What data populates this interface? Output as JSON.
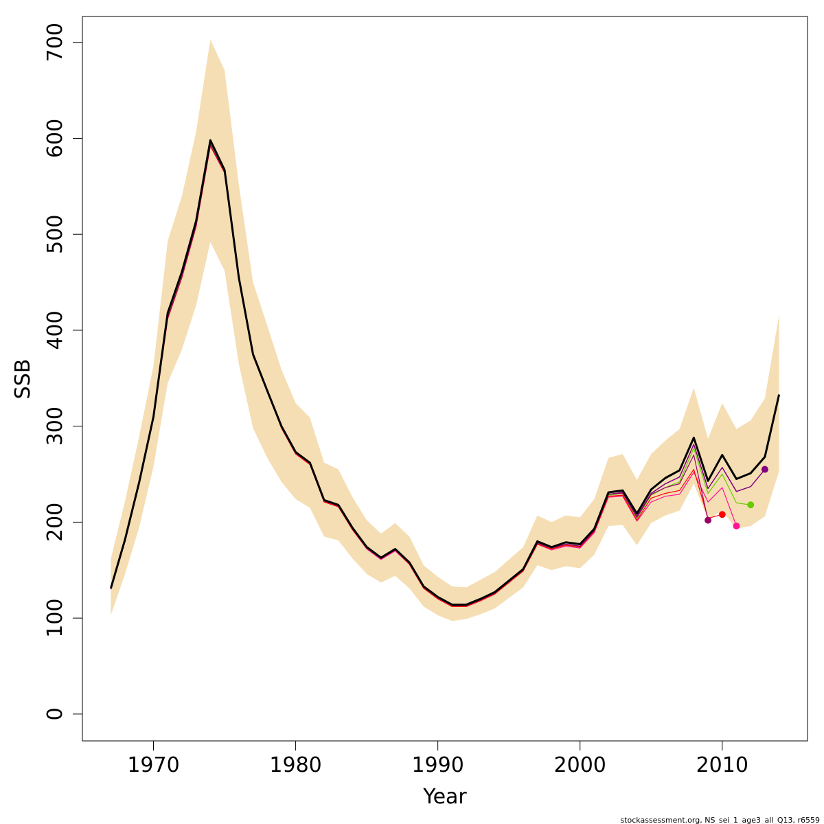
{
  "chart_data": {
    "type": "line",
    "title": "",
    "xlabel": "Year",
    "ylabel": "SSB",
    "xlim": [
      1965,
      2016
    ],
    "ylim": [
      -28,
      727
    ],
    "xticks": [
      1970,
      1980,
      1990,
      2000,
      2010
    ],
    "yticks": [
      0,
      100,
      200,
      300,
      400,
      500,
      600,
      700
    ],
    "grid": false,
    "legend": "none",
    "colors": {
      "band": "#f5deb3",
      "main": "#000000"
    },
    "band": {
      "x": [
        1967,
        1968,
        1969,
        1970,
        1971,
        1972,
        1973,
        1974,
        1975,
        1976,
        1977,
        1978,
        1979,
        1980,
        1981,
        1982,
        1983,
        1984,
        1985,
        1986,
        1987,
        1988,
        1989,
        1990,
        1991,
        1992,
        1993,
        1994,
        1995,
        1996,
        1997,
        1998,
        1999,
        2000,
        2001,
        2002,
        2003,
        2004,
        2005,
        2006,
        2007,
        2008,
        2009,
        2010,
        2011,
        2012,
        2013,
        2014
      ],
      "lower": [
        103,
        146,
        195,
        258,
        345,
        380,
        426,
        492,
        462,
        365,
        298,
        267,
        242,
        224,
        215,
        185,
        181,
        162,
        146,
        137,
        144,
        131,
        112,
        103,
        97,
        99,
        104,
        110,
        121,
        132,
        155,
        150,
        154,
        152,
        166,
        196,
        197,
        176,
        199,
        207,
        212,
        240,
        203,
        212,
        193,
        196,
        206,
        253
      ],
      "upper": [
        162,
        222,
        290,
        363,
        493,
        540,
        607,
        703,
        671,
        552,
        450,
        405,
        359,
        324,
        309,
        262,
        255,
        226,
        202,
        188,
        199,
        185,
        155,
        143,
        133,
        132,
        140,
        148,
        161,
        174,
        207,
        200,
        207,
        205,
        224,
        267,
        271,
        244,
        271,
        285,
        297,
        340,
        287,
        324,
        297,
        306,
        329,
        416
      ]
    },
    "series": [
      {
        "color": "#000000",
        "width": 3,
        "x": [
          1967,
          1968,
          1969,
          1970,
          1971,
          1972,
          1973,
          1974,
          1975,
          1976,
          1977,
          1978,
          1979,
          1980,
          1981,
          1982,
          1983,
          1984,
          1985,
          1986,
          1987,
          1988,
          1989,
          1990,
          1991,
          1992,
          1993,
          1994,
          1995,
          1996,
          1997,
          1998,
          1999,
          2000,
          2001,
          2002,
          2003,
          2004,
          2005,
          2006,
          2007,
          2008,
          2009,
          2010,
          2011,
          2012,
          2013,
          2014
        ],
        "values": [
          131,
          182,
          242,
          310,
          418,
          461,
          514,
          598,
          567,
          455,
          375,
          337,
          300,
          273,
          262,
          223,
          218,
          194,
          174,
          163,
          172,
          158,
          133,
          122,
          114,
          114,
          120,
          127,
          139,
          151,
          180,
          174,
          179,
          177,
          193,
          231,
          233,
          209,
          234,
          246,
          254,
          288,
          243,
          270,
          245,
          251,
          268,
          333
        ]
      },
      {
        "color": "#800080",
        "width": 1.5,
        "x": [
          1967,
          1968,
          1969,
          1970,
          1971,
          1972,
          1973,
          1974,
          1975,
          1976,
          1977,
          1978,
          1979,
          1980,
          1981,
          1982,
          1983,
          1984,
          1985,
          1986,
          1987,
          1988,
          1989,
          1990,
          1991,
          1992,
          1993,
          1994,
          1995,
          1996,
          1997,
          1998,
          1999,
          2000,
          2001,
          2002,
          2003,
          2004,
          2005,
          2006,
          2007,
          2008,
          2009,
          2010,
          2011,
          2012,
          2013
        ],
        "values": [
          131,
          181,
          241,
          309,
          415,
          458,
          511,
          595,
          565,
          454,
          374,
          337,
          299,
          272,
          261,
          222,
          217,
          193,
          173,
          162,
          171,
          157,
          132,
          121,
          113,
          113,
          119,
          126,
          138,
          150,
          179,
          173,
          177,
          175,
          191,
          229,
          231,
          206,
          230,
          240,
          247,
          281,
          235,
          257,
          232,
          237,
          255
        ],
        "end_point": [
          2013,
          255
        ]
      },
      {
        "color": "#66cc00",
        "width": 1.2,
        "x": [
          1967,
          1968,
          1969,
          1970,
          1971,
          1972,
          1973,
          1974,
          1975,
          1976,
          1977,
          1978,
          1979,
          1980,
          1981,
          1982,
          1983,
          1984,
          1985,
          1986,
          1987,
          1988,
          1989,
          1990,
          1991,
          1992,
          1993,
          1994,
          1995,
          1996,
          1997,
          1998,
          1999,
          2000,
          2001,
          2002,
          2003,
          2004,
          2005,
          2006,
          2007,
          2008,
          2009,
          2010,
          2011,
          2012
        ],
        "values": [
          131,
          181,
          241,
          309,
          414,
          457,
          510,
          594,
          565,
          454,
          374,
          336,
          299,
          272,
          261,
          222,
          217,
          193,
          173,
          162,
          171,
          157,
          132,
          121,
          113,
          113,
          119,
          126,
          138,
          150,
          178,
          172,
          176,
          174,
          190,
          228,
          230,
          204,
          228,
          236,
          242,
          277,
          230,
          250,
          220,
          218
        ],
        "end_point": [
          2012,
          218
        ]
      },
      {
        "color": "#ff1493",
        "width": 1.2,
        "x": [
          1967,
          1968,
          1969,
          1970,
          1971,
          1972,
          1973,
          1974,
          1975,
          1976,
          1977,
          1978,
          1979,
          1980,
          1981,
          1982,
          1983,
          1984,
          1985,
          1986,
          1987,
          1988,
          1989,
          1990,
          1991,
          1992,
          1993,
          1994,
          1995,
          1996,
          1997,
          1998,
          1999,
          2000,
          2001,
          2002,
          2003,
          2004,
          2005,
          2006,
          2007,
          2008,
          2009,
          2010,
          2011
        ],
        "values": [
          130,
          180,
          240,
          308,
          412,
          455,
          509,
          592,
          564,
          453,
          373,
          336,
          298,
          271,
          260,
          221,
          216,
          192,
          172,
          161,
          170,
          156,
          131,
          120,
          112,
          112,
          118,
          125,
          137,
          149,
          177,
          171,
          175,
          173,
          189,
          226,
          227,
          201,
          221,
          227,
          229,
          252,
          221,
          236,
          196
        ],
        "end_point": [
          2011,
          196
        ]
      },
      {
        "color": "#ff0000",
        "width": 1.2,
        "x": [
          1967,
          1968,
          1969,
          1970,
          1971,
          1972,
          1973,
          1974,
          1975,
          1976,
          1977,
          1978,
          1979,
          1980,
          1981,
          1982,
          1983,
          1984,
          1985,
          1986,
          1987,
          1988,
          1989,
          1990,
          1991,
          1992,
          1993,
          1994,
          1995,
          1996,
          1997,
          1998,
          1999,
          2000,
          2001,
          2002,
          2003,
          2004,
          2005,
          2006,
          2007,
          2008,
          2009,
          2010
        ],
        "values": [
          130,
          180,
          240,
          308,
          412,
          455,
          508,
          592,
          564,
          453,
          373,
          336,
          298,
          271,
          260,
          221,
          216,
          192,
          173,
          162,
          171,
          156,
          131,
          120,
          112,
          112,
          118,
          125,
          137,
          149,
          177,
          172,
          176,
          174,
          190,
          227,
          228,
          202,
          225,
          230,
          233,
          255,
          204,
          208
        ],
        "end_point": [
          2010,
          208
        ]
      },
      {
        "color": "#990066",
        "width": 1.2,
        "x": [
          1967,
          1968,
          1969,
          1970,
          1971,
          1972,
          1973,
          1974,
          1975,
          1976,
          1977,
          1978,
          1979,
          1980,
          1981,
          1982,
          1983,
          1984,
          1985,
          1986,
          1987,
          1988,
          1989,
          1990,
          1991,
          1992,
          1993,
          1994,
          1995,
          1996,
          1997,
          1998,
          1999,
          2000,
          2001,
          2002,
          2003,
          2004,
          2005,
          2006,
          2007,
          2008,
          2009
        ],
        "values": [
          130,
          180,
          240,
          308,
          413,
          456,
          509,
          593,
          565,
          454,
          374,
          336,
          299,
          272,
          261,
          222,
          217,
          193,
          173,
          162,
          171,
          157,
          132,
          121,
          113,
          113,
          119,
          126,
          138,
          150,
          178,
          173,
          177,
          175,
          191,
          229,
          230,
          205,
          229,
          236,
          240,
          270,
          202
        ],
        "end_point": [
          2009,
          202
        ]
      }
    ],
    "footer": "stockassessment.org, NS_sei_1_age3_all_Q13, r6559"
  }
}
